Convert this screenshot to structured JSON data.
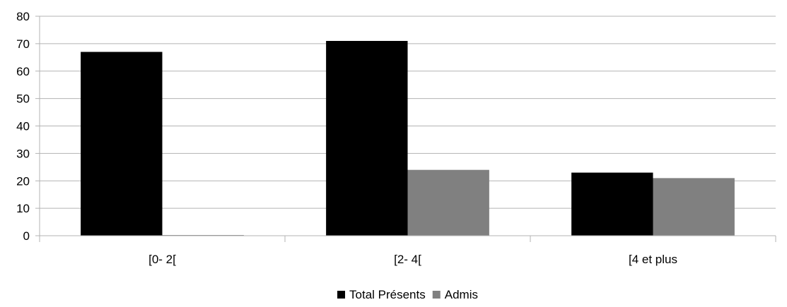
{
  "chart_data": {
    "type": "bar",
    "categories": [
      "[0- 2[",
      "[2- 4[",
      "[4 et plus"
    ],
    "series": [
      {
        "name": "Total Présents",
        "values": [
          67,
          71,
          23
        ],
        "color": "#000000"
      },
      {
        "name": "Admis",
        "values": [
          0,
          24,
          21
        ],
        "color": "#808080"
      }
    ],
    "ylim": [
      0,
      80
    ],
    "yticks": [
      0,
      10,
      20,
      30,
      40,
      50,
      60,
      70,
      80
    ],
    "grid": true,
    "legend_position": "bottom-center",
    "gridline_color": "#b3b3b3",
    "axis_color": "#b3b3b3"
  }
}
